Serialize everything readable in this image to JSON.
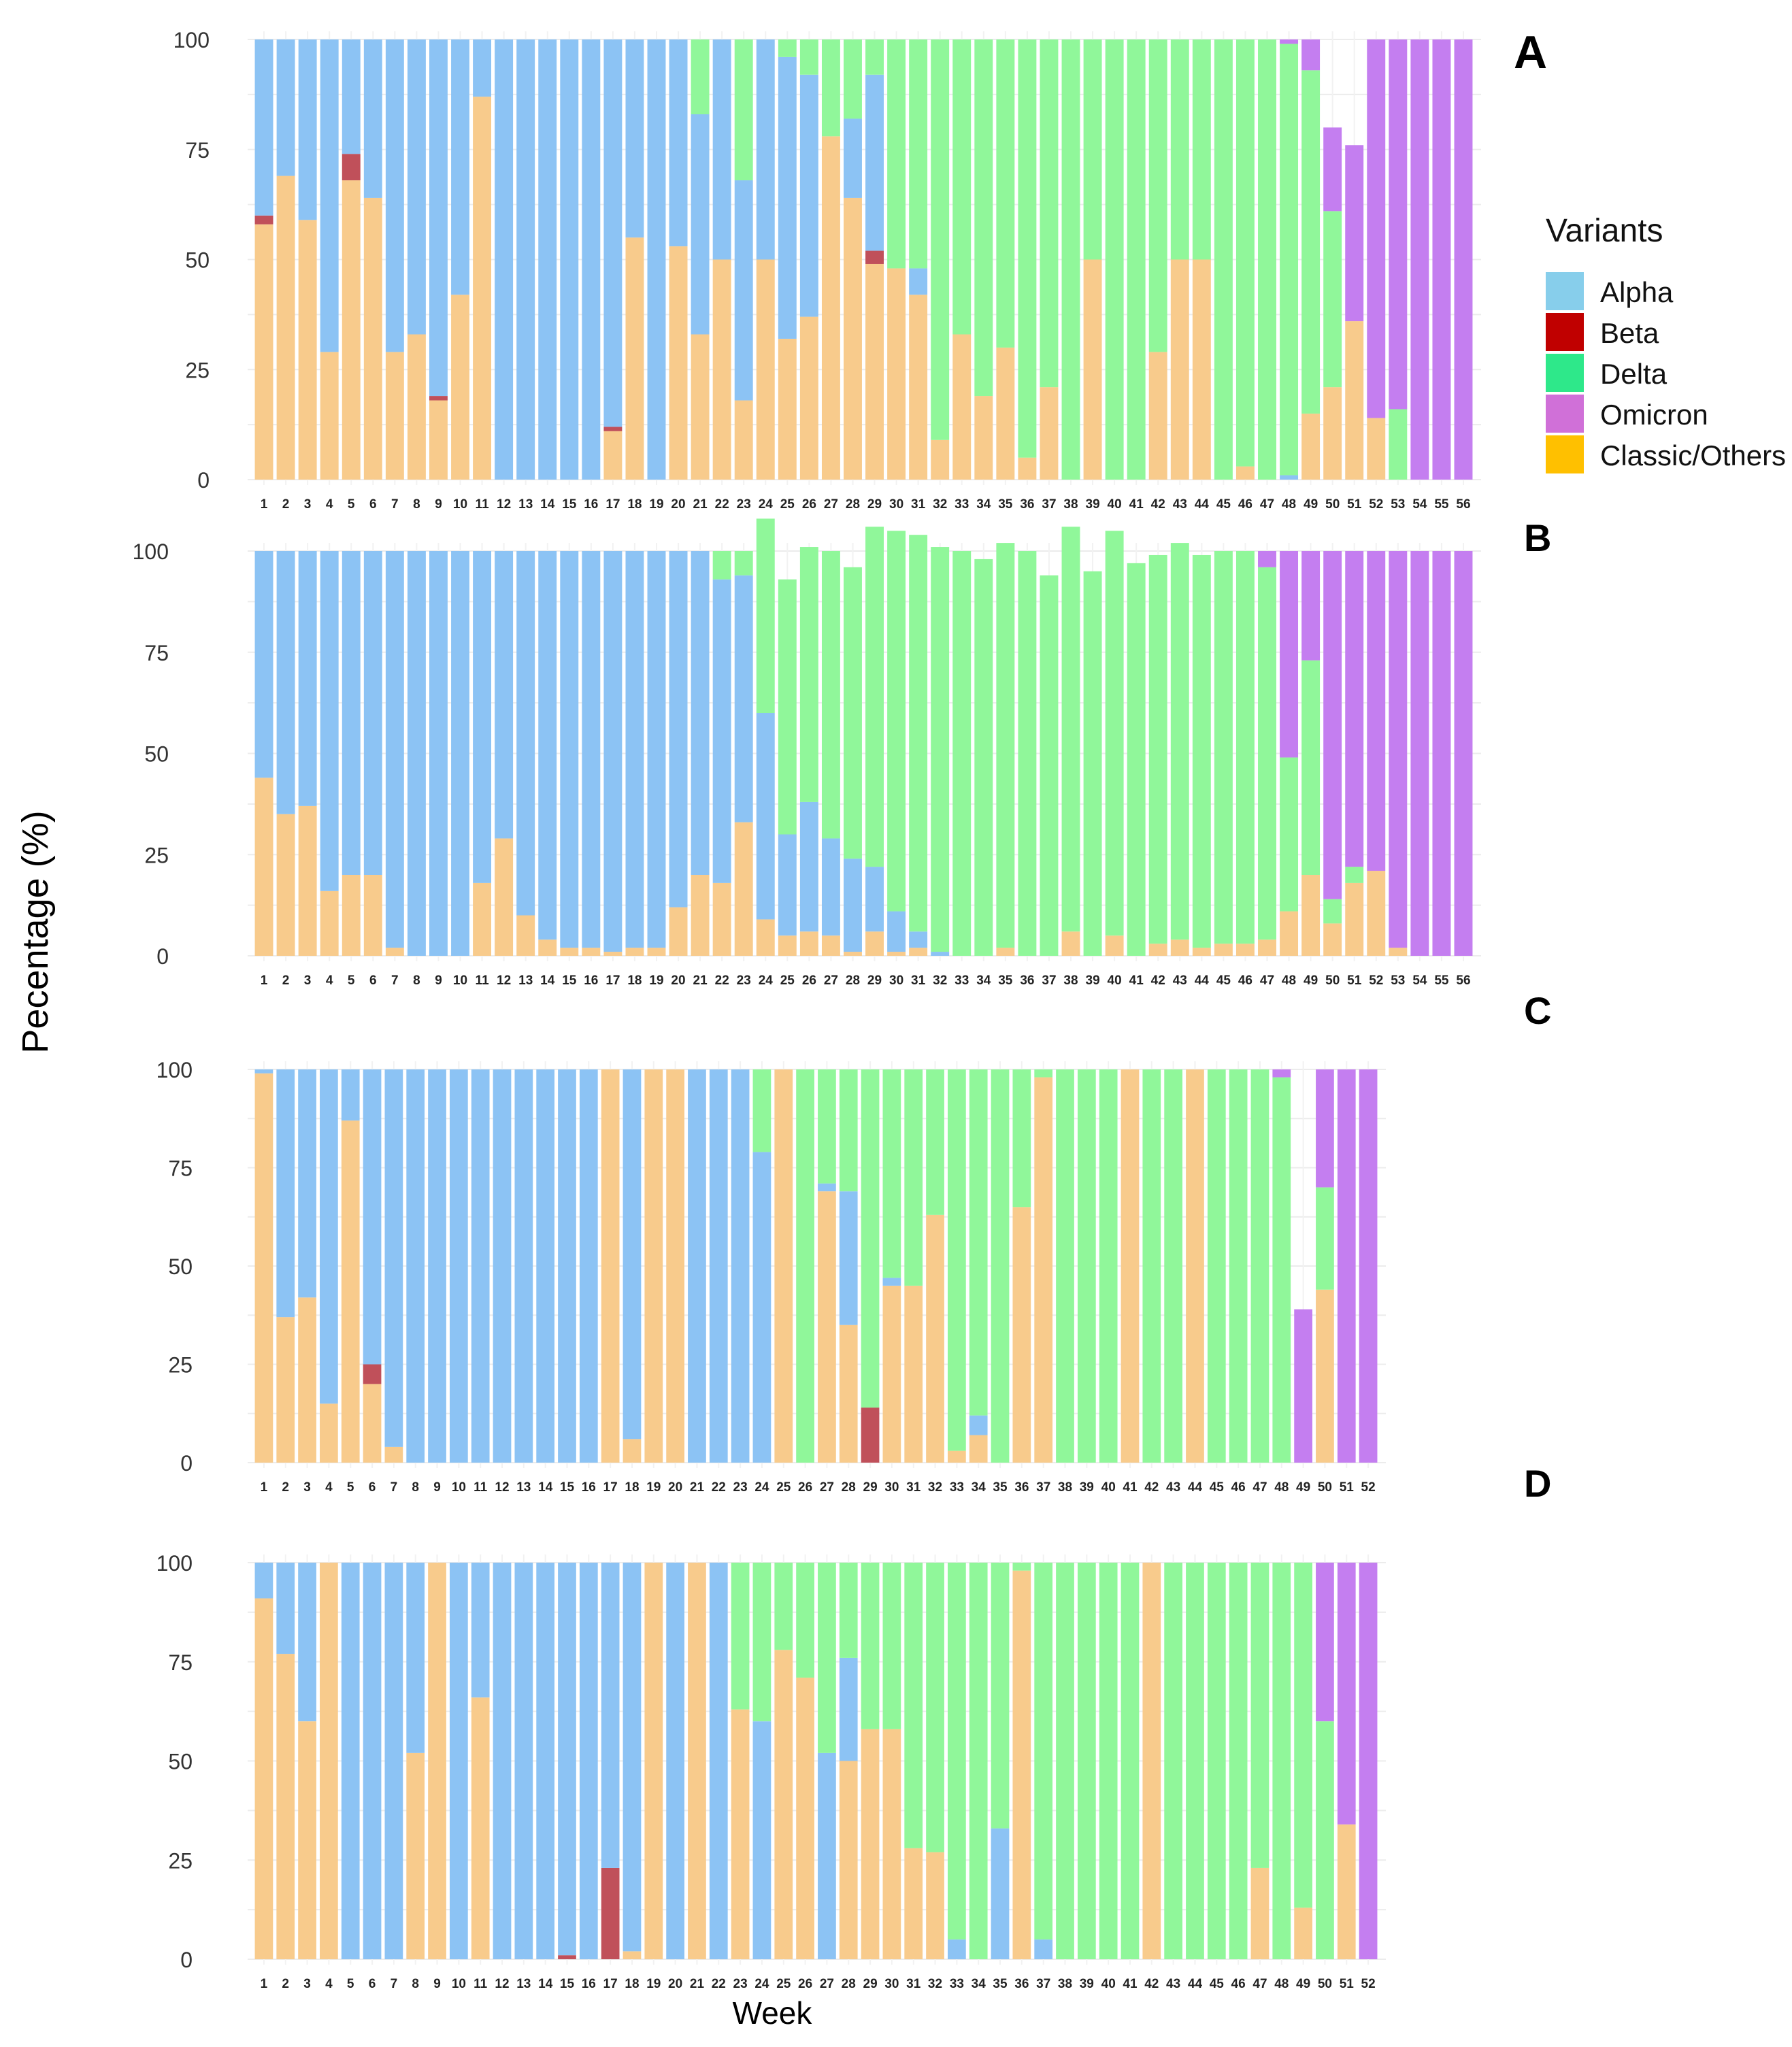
{
  "chart_data": {
    "type": "bar",
    "stacked": true,
    "ylabel": "Pecentage (%)",
    "xlabel": "Week",
    "ylim": [
      0,
      100
    ],
    "yticks": [
      0,
      25,
      50,
      75,
      100
    ],
    "legend": {
      "title": "Variants",
      "position": "right",
      "entries": [
        {
          "name": "Alpha",
          "color": "#87ceeb"
        },
        {
          "name": "Beta",
          "color": "#c00000"
        },
        {
          "name": "Delta",
          "color": "#2ee88a"
        },
        {
          "name": "Omicron",
          "color": "#d070d8"
        },
        {
          "name": "Classic/Others",
          "color": "#ffc000"
        }
      ]
    },
    "render_colors": {
      "Classic/Others": "#f8cb8c",
      "Beta": "#c0505a",
      "Alpha": "#8cc3f4",
      "Delta": "#90f79a",
      "Omicron": "#c47ef0"
    },
    "stack_order": [
      "Classic/Others",
      "Beta",
      "Alpha",
      "Delta",
      "Omicron"
    ],
    "panels": [
      {
        "label": "A",
        "weeks": 56,
        "series": {
          "Classic/Others": [
            58,
            69,
            59,
            29,
            68,
            64,
            29,
            33,
            18,
            42,
            87,
            0,
            0,
            0,
            0,
            0,
            11,
            55,
            0,
            53,
            33,
            50,
            18,
            50,
            32,
            37,
            78,
            64,
            49,
            48,
            42,
            9,
            33,
            19,
            30,
            5,
            21,
            0,
            50,
            0,
            0,
            29,
            50,
            50,
            0,
            3,
            0,
            0,
            15,
            21,
            36,
            14,
            0,
            0,
            0,
            0
          ],
          "Beta": [
            2,
            0,
            0,
            0,
            6,
            0,
            0,
            0,
            1,
            0,
            0,
            0,
            0,
            0,
            0,
            0,
            1,
            0,
            0,
            0,
            0,
            0,
            0,
            0,
            0,
            0,
            0,
            0,
            3,
            0,
            0,
            0,
            0,
            0,
            0,
            0,
            0,
            0,
            0,
            0,
            0,
            0,
            0,
            0,
            0,
            0,
            0,
            0,
            0,
            0,
            0,
            0,
            0,
            0,
            0,
            0
          ],
          "Alpha": [
            40,
            31,
            41,
            71,
            26,
            36,
            71,
            67,
            81,
            58,
            13,
            100,
            100,
            100,
            100,
            100,
            88,
            45,
            100,
            47,
            50,
            50,
            50,
            50,
            64,
            55,
            0,
            18,
            40,
            0,
            6,
            0,
            0,
            0,
            0,
            0,
            0,
            0,
            0,
            0,
            0,
            0,
            0,
            0,
            0,
            0,
            0,
            1,
            0,
            0,
            0,
            0,
            0,
            0,
            0,
            0
          ],
          "Delta": [
            0,
            0,
            0,
            0,
            0,
            0,
            0,
            0,
            0,
            0,
            0,
            0,
            0,
            0,
            0,
            0,
            0,
            0,
            0,
            0,
            17,
            0,
            32,
            0,
            4,
            8,
            22,
            18,
            8,
            52,
            52,
            91,
            67,
            81,
            70,
            95,
            79,
            100,
            50,
            100,
            100,
            71,
            50,
            50,
            100,
            97,
            100,
            98,
            78,
            40,
            0,
            0,
            16,
            0,
            0,
            0
          ],
          "Omicron": [
            0,
            0,
            0,
            0,
            0,
            0,
            0,
            0,
            0,
            0,
            0,
            0,
            0,
            0,
            0,
            0,
            0,
            0,
            0,
            0,
            0,
            0,
            0,
            0,
            0,
            0,
            0,
            0,
            0,
            0,
            0,
            0,
            0,
            0,
            0,
            0,
            0,
            0,
            0,
            0,
            0,
            0,
            0,
            0,
            0,
            0,
            0,
            1,
            7,
            19,
            40,
            86,
            84,
            100,
            100,
            100
          ]
        }
      },
      {
        "label": "B",
        "weeks": 56,
        "series": {
          "Classic/Others": [
            44,
            35,
            37,
            16,
            20,
            20,
            2,
            0,
            0,
            0,
            18,
            29,
            10,
            4,
            2,
            2,
            1,
            2,
            2,
            12,
            20,
            18,
            33,
            9,
            5,
            6,
            5,
            1,
            6,
            1,
            2,
            0,
            0,
            0,
            2,
            0,
            0,
            6,
            0,
            5,
            0,
            3,
            4,
            2,
            3,
            3,
            4,
            11,
            20,
            8,
            18,
            21,
            2,
            0,
            0,
            0
          ],
          "Beta": [
            0,
            0,
            0,
            0,
            0,
            0,
            0,
            0,
            0,
            0,
            0,
            0,
            0,
            0,
            0,
            0,
            0,
            0,
            0,
            0,
            0,
            0,
            0,
            0,
            0,
            0,
            0,
            0,
            0,
            0,
            0,
            0,
            0,
            0,
            0,
            0,
            0,
            0,
            0,
            0,
            0,
            0,
            0,
            0,
            0,
            0,
            0,
            0,
            0,
            0,
            0,
            0,
            0,
            0,
            0,
            0
          ],
          "Alpha": [
            56,
            65,
            63,
            84,
            80,
            80,
            98,
            100,
            100,
            100,
            82,
            71,
            90,
            96,
            98,
            98,
            99,
            98,
            98,
            88,
            80,
            75,
            61,
            51,
            25,
            32,
            24,
            23,
            16,
            10,
            4,
            1,
            0,
            0,
            0,
            0,
            0,
            0,
            0,
            0,
            0,
            0,
            0,
            0,
            0,
            0,
            0,
            0,
            0,
            0,
            0,
            0,
            0,
            0,
            0,
            0
          ],
          "Delta": [
            0,
            0,
            0,
            0,
            0,
            0,
            0,
            0,
            0,
            0,
            0,
            0,
            0,
            0,
            0,
            0,
            0,
            0,
            0,
            0,
            0,
            7,
            6,
            48,
            63,
            63,
            71,
            72,
            84,
            94,
            98,
            100,
            100,
            98,
            100,
            100,
            94,
            100,
            95,
            100,
            97,
            96,
            98,
            97,
            97,
            97,
            92,
            38,
            53,
            6,
            4,
            0,
            0,
            0,
            0,
            0
          ],
          "Omicron": [
            0,
            0,
            0,
            0,
            0,
            0,
            0,
            0,
            0,
            0,
            0,
            0,
            0,
            0,
            0,
            0,
            0,
            0,
            0,
            0,
            0,
            0,
            0,
            0,
            0,
            0,
            0,
            0,
            0,
            0,
            0,
            0,
            0,
            0,
            0,
            0,
            0,
            0,
            0,
            0,
            0,
            0,
            0,
            0,
            0,
            0,
            4,
            51,
            27,
            86,
            78,
            79,
            98,
            100,
            100,
            100
          ]
        }
      },
      {
        "label": "C",
        "weeks": 52,
        "series": {
          "Classic/Others": [
            99,
            37,
            42,
            15,
            87,
            20,
            4,
            0,
            0,
            0,
            0,
            0,
            0,
            0,
            0,
            0,
            100,
            6,
            100,
            100,
            0,
            0,
            0,
            0,
            100,
            0,
            69,
            35,
            0,
            45,
            45,
            63,
            3,
            7,
            0,
            65,
            98,
            0,
            0,
            0,
            100,
            0,
            0,
            100,
            0,
            0,
            0,
            0,
            0,
            44,
            0,
            0
          ],
          "Beta": [
            0,
            0,
            0,
            0,
            0,
            5,
            0,
            0,
            0,
            0,
            0,
            0,
            0,
            0,
            0,
            0,
            0,
            0,
            0,
            0,
            0,
            0,
            0,
            0,
            0,
            0,
            0,
            0,
            14,
            0,
            0,
            0,
            0,
            0,
            0,
            0,
            0,
            0,
            0,
            0,
            0,
            0,
            0,
            0,
            0,
            0,
            0,
            0,
            0,
            0,
            0,
            0
          ],
          "Alpha": [
            1,
            63,
            58,
            85,
            13,
            75,
            96,
            100,
            100,
            100,
            100,
            100,
            100,
            100,
            100,
            100,
            0,
            94,
            0,
            0,
            100,
            100,
            100,
            79,
            0,
            0,
            2,
            34,
            0,
            2,
            0,
            0,
            0,
            5,
            0,
            0,
            0,
            0,
            0,
            0,
            0,
            0,
            0,
            0,
            0,
            0,
            0,
            0,
            0,
            0,
            0,
            0
          ],
          "Delta": [
            0,
            0,
            0,
            0,
            0,
            0,
            0,
            0,
            0,
            0,
            0,
            0,
            0,
            0,
            0,
            0,
            0,
            0,
            0,
            0,
            0,
            0,
            0,
            21,
            0,
            100,
            29,
            31,
            86,
            53,
            55,
            37,
            97,
            88,
            100,
            35,
            2,
            100,
            100,
            100,
            0,
            100,
            100,
            0,
            100,
            100,
            100,
            98,
            0,
            26,
            0,
            0
          ],
          "Omicron": [
            0,
            0,
            0,
            0,
            0,
            0,
            0,
            0,
            0,
            0,
            0,
            0,
            0,
            0,
            0,
            0,
            0,
            0,
            0,
            0,
            0,
            0,
            0,
            0,
            0,
            0,
            0,
            0,
            0,
            0,
            0,
            0,
            0,
            0,
            0,
            0,
            0,
            0,
            0,
            0,
            0,
            0,
            0,
            0,
            0,
            0,
            0,
            2,
            39,
            30,
            100,
            100
          ]
        }
      },
      {
        "label": "D",
        "weeks": 52,
        "series": {
          "Classic/Others": [
            91,
            77,
            60,
            100,
            0,
            0,
            0,
            52,
            100,
            0,
            66,
            0,
            0,
            0,
            0,
            0,
            0,
            2,
            100,
            0,
            100,
            0,
            63,
            0,
            78,
            71,
            0,
            50,
            58,
            58,
            28,
            27,
            0,
            0,
            0,
            98,
            0,
            0,
            0,
            0,
            0,
            100,
            0,
            0,
            0,
            0,
            23,
            0,
            13,
            0,
            34,
            0
          ],
          "Beta": [
            0,
            0,
            0,
            0,
            0,
            0,
            0,
            0,
            0,
            0,
            0,
            0,
            0,
            0,
            1,
            0,
            23,
            0,
            0,
            0,
            0,
            0,
            0,
            0,
            0,
            0,
            0,
            0,
            0,
            0,
            0,
            0,
            0,
            0,
            0,
            0,
            0,
            0,
            0,
            0,
            0,
            0,
            0,
            0,
            0,
            0,
            0,
            0,
            0,
            0,
            0,
            0
          ],
          "Alpha": [
            9,
            23,
            40,
            0,
            100,
            100,
            100,
            48,
            0,
            100,
            34,
            100,
            100,
            100,
            99,
            100,
            77,
            98,
            0,
            100,
            0,
            100,
            0,
            60,
            0,
            0,
            52,
            26,
            0,
            0,
            0,
            0,
            5,
            0,
            33,
            0,
            5,
            0,
            0,
            0,
            0,
            0,
            0,
            0,
            0,
            0,
            0,
            0,
            0,
            0,
            0,
            0
          ],
          "Delta": [
            0,
            0,
            0,
            0,
            0,
            0,
            0,
            0,
            0,
            0,
            0,
            0,
            0,
            0,
            0,
            0,
            0,
            0,
            0,
            0,
            0,
            0,
            37,
            40,
            22,
            29,
            48,
            24,
            42,
            42,
            72,
            73,
            95,
            100,
            67,
            2,
            95,
            100,
            100,
            100,
            100,
            0,
            100,
            100,
            100,
            100,
            77,
            100,
            87,
            60,
            0,
            0
          ],
          "Omicron": [
            0,
            0,
            0,
            0,
            0,
            0,
            0,
            0,
            0,
            0,
            0,
            0,
            0,
            0,
            0,
            0,
            0,
            0,
            0,
            0,
            0,
            0,
            0,
            0,
            0,
            0,
            0,
            0,
            0,
            0,
            0,
            0,
            0,
            0,
            0,
            0,
            0,
            0,
            0,
            0,
            0,
            0,
            0,
            0,
            0,
            0,
            0,
            0,
            0,
            40,
            66,
            100
          ]
        }
      }
    ]
  }
}
